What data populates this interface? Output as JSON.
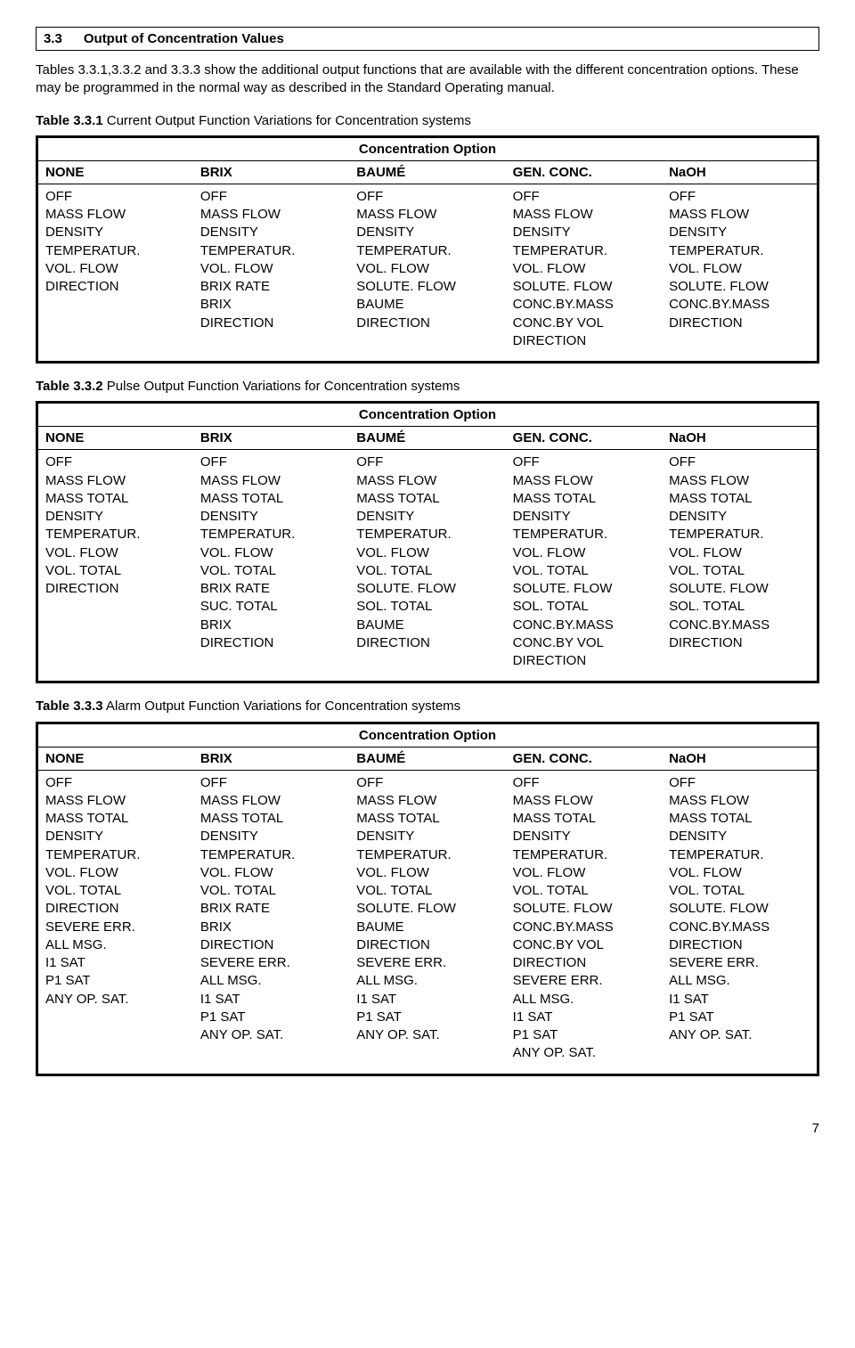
{
  "section": {
    "number": "3.3",
    "title": "Output of Concentration Values"
  },
  "intro": {
    "p1": "Tables 3.3.1,3.3.2 and 3.3.3 show the additional output functions that are available with the different concentration options. These may be programmed in the normal way as described in the Standard Operating manual."
  },
  "table1": {
    "caption_bold": "Table 3.3.1",
    "caption_rest": " Current Output Function Variations for Concentration systems",
    "span_header": "Concentration Option",
    "headers": [
      "NONE",
      "BRIX",
      "BAUMÉ",
      "GEN. CONC.",
      "NaOH"
    ],
    "cols": [
      [
        "OFF",
        "MASS FLOW",
        "DENSITY",
        "TEMPERATUR.",
        "VOL. FLOW",
        "DIRECTION"
      ],
      [
        "OFF",
        "MASS FLOW",
        "DENSITY",
        "TEMPERATUR.",
        "VOL. FLOW",
        "BRIX RATE",
        "BRIX",
        "DIRECTION"
      ],
      [
        "OFF",
        "MASS FLOW",
        "DENSITY",
        "TEMPERATUR.",
        "VOL. FLOW",
        "SOLUTE. FLOW",
        "BAUME",
        "DIRECTION"
      ],
      [
        "OFF",
        "MASS FLOW",
        "DENSITY",
        "TEMPERATUR.",
        "VOL. FLOW",
        "SOLUTE. FLOW",
        "CONC.BY.MASS",
        "CONC.BY VOL",
        "DIRECTION"
      ],
      [
        "OFF",
        "MASS FLOW",
        "DENSITY",
        "TEMPERATUR.",
        "VOL. FLOW",
        "SOLUTE. FLOW",
        "CONC.BY.MASS",
        "DIRECTION"
      ]
    ]
  },
  "table2": {
    "caption_bold": "Table 3.3.2",
    "caption_rest": " Pulse Output Function Variations for Concentration systems",
    "span_header": "Concentration Option",
    "headers": [
      "NONE",
      "BRIX",
      "BAUMÉ",
      "GEN. CONC.",
      "NaOH"
    ],
    "cols": [
      [
        "OFF",
        "MASS FLOW",
        "MASS TOTAL",
        "DENSITY",
        "TEMPERATUR.",
        "VOL. FLOW",
        "VOL. TOTAL",
        "DIRECTION"
      ],
      [
        "OFF",
        "MASS FLOW",
        "MASS TOTAL",
        "DENSITY",
        "TEMPERATUR.",
        "VOL. FLOW",
        "VOL. TOTAL",
        "BRIX RATE",
        "SUC. TOTAL",
        "BRIX",
        "DIRECTION"
      ],
      [
        "OFF",
        "MASS FLOW",
        "MASS TOTAL",
        "DENSITY",
        "TEMPERATUR.",
        "VOL. FLOW",
        "VOL. TOTAL",
        "SOLUTE. FLOW",
        "SOL. TOTAL",
        "BAUME",
        "DIRECTION"
      ],
      [
        "OFF",
        "MASS FLOW",
        "MASS TOTAL",
        "DENSITY",
        "TEMPERATUR.",
        "VOL. FLOW",
        "VOL. TOTAL",
        "SOLUTE. FLOW",
        "SOL. TOTAL",
        "CONC.BY.MASS",
        "CONC.BY VOL",
        "DIRECTION"
      ],
      [
        "OFF",
        "MASS FLOW",
        "MASS TOTAL",
        "DENSITY",
        "TEMPERATUR.",
        "VOL. FLOW",
        "VOL. TOTAL",
        "SOLUTE. FLOW",
        "SOL. TOTAL",
        "CONC.BY.MASS",
        "DIRECTION"
      ]
    ]
  },
  "table3": {
    "caption_bold": "Table 3.3.3",
    "caption_rest": " Alarm Output Function Variations for Concentration systems",
    "span_header": "Concentration Option",
    "headers": [
      "NONE",
      "BRIX",
      "BAUMÉ",
      "GEN. CONC.",
      "NaOH"
    ],
    "cols": [
      [
        "OFF",
        "MASS FLOW",
        "MASS TOTAL",
        "DENSITY",
        "TEMPERATUR.",
        "VOL. FLOW",
        "VOL. TOTAL",
        "DIRECTION",
        "SEVERE ERR.",
        "ALL MSG.",
        "I1 SAT",
        "P1 SAT",
        "ANY OP. SAT."
      ],
      [
        "OFF",
        "MASS FLOW",
        "MASS TOTAL",
        "DENSITY",
        "TEMPERATUR.",
        "VOL. FLOW",
        "VOL. TOTAL",
        "BRIX RATE",
        "BRIX",
        "DIRECTION",
        "SEVERE ERR.",
        "ALL MSG.",
        "I1 SAT",
        "P1 SAT",
        "ANY OP. SAT."
      ],
      [
        "OFF",
        "MASS FLOW",
        "MASS TOTAL",
        "DENSITY",
        "TEMPERATUR.",
        "VOL. FLOW",
        "VOL. TOTAL",
        "SOLUTE. FLOW",
        "BAUME",
        "DIRECTION",
        "SEVERE ERR.",
        "ALL MSG.",
        "I1 SAT",
        "P1 SAT",
        "ANY OP. SAT."
      ],
      [
        "OFF",
        "MASS FLOW",
        "MASS TOTAL",
        "DENSITY",
        "TEMPERATUR.",
        "VOL. FLOW",
        "VOL. TOTAL",
        "SOLUTE. FLOW",
        "CONC.BY.MASS",
        "CONC.BY VOL",
        "DIRECTION",
        "SEVERE ERR.",
        "ALL MSG.",
        "I1 SAT",
        "P1 SAT",
        "ANY OP. SAT."
      ],
      [
        "OFF",
        "MASS FLOW",
        "MASS TOTAL",
        "DENSITY",
        "TEMPERATUR.",
        "VOL. FLOW",
        "VOL. TOTAL",
        "SOLUTE. FLOW",
        "CONC.BY.MASS",
        "DIRECTION",
        "SEVERE ERR.",
        "ALL MSG.",
        "I1 SAT",
        "P1 SAT",
        "ANY OP. SAT."
      ]
    ]
  },
  "page_number": "7"
}
